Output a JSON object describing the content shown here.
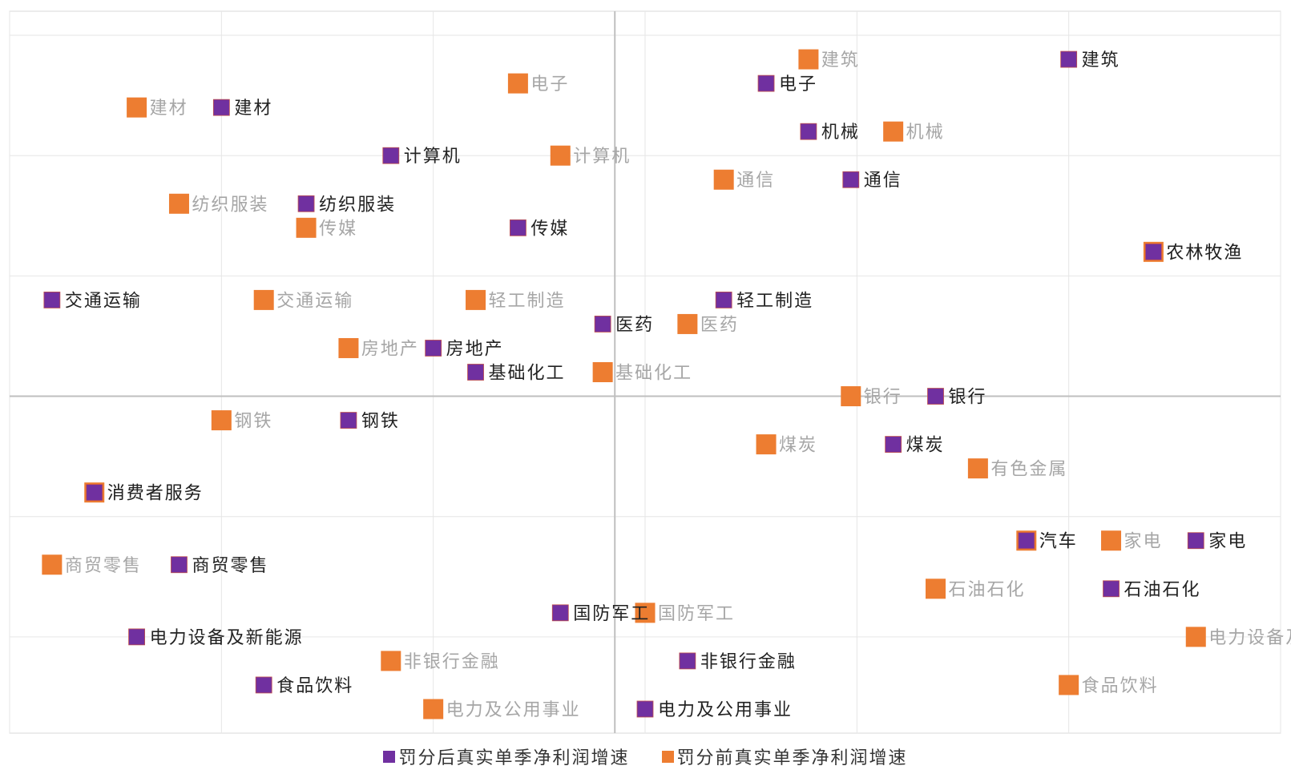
{
  "chart_data": {
    "type": "scatter",
    "title": "",
    "xlabel": "",
    "ylabel": "",
    "xlim": [
      0,
      10.5
    ],
    "ylim": [
      -14,
      16
    ],
    "grid": true,
    "legend_placement": "bottom",
    "series": [
      {
        "name": "罚分后真实单季净利润增速",
        "color": "#7030A0",
        "label_color": "#222222",
        "points": [
          {
            "label": "建筑",
            "x": 8.75,
            "y": 14
          },
          {
            "label": "电子",
            "x": 6.25,
            "y": 13
          },
          {
            "label": "建材",
            "x": 1.75,
            "y": 12
          },
          {
            "label": "机械",
            "x": 6.6,
            "y": 11
          },
          {
            "label": "计算机",
            "x": 3.15,
            "y": 10
          },
          {
            "label": "通信",
            "x": 6.95,
            "y": 9
          },
          {
            "label": "纺织服装",
            "x": 2.45,
            "y": 8
          },
          {
            "label": "传媒",
            "x": 4.2,
            "y": 7
          },
          {
            "label": "农林牧渔",
            "x": 9.45,
            "y": 6
          },
          {
            "label": "交通运输",
            "x": 0.35,
            "y": 4
          },
          {
            "label": "轻工制造",
            "x": 5.9,
            "y": 4
          },
          {
            "label": "医药",
            "x": 4.9,
            "y": 3
          },
          {
            "label": "房地产",
            "x": 3.5,
            "y": 2
          },
          {
            "label": "基础化工",
            "x": 3.85,
            "y": 1
          },
          {
            "label": "银行",
            "x": 7.65,
            "y": 0
          },
          {
            "label": "钢铁",
            "x": 2.8,
            "y": -1
          },
          {
            "label": "煤炭",
            "x": 7.3,
            "y": -2
          },
          {
            "label": "消费者服务",
            "x": 0.7,
            "y": -4
          },
          {
            "label": "汽车",
            "x": 8.4,
            "y": -6
          },
          {
            "label": "家电",
            "x": 9.8,
            "y": -6
          },
          {
            "label": "商贸零售",
            "x": 1.4,
            "y": -7
          },
          {
            "label": "石油石化",
            "x": 9.1,
            "y": -8
          },
          {
            "label": "国防军工",
            "x": 4.55,
            "y": -9
          },
          {
            "label": "电力设备及新能源",
            "x": 1.05,
            "y": -10
          },
          {
            "label": "非银行金融",
            "x": 5.6,
            "y": -11
          },
          {
            "label": "食品饮料",
            "x": 2.1,
            "y": -12
          },
          {
            "label": "电力及公用事业",
            "x": 5.25,
            "y": -13
          }
        ]
      },
      {
        "name": "罚分前真实单季净利润增速",
        "color": "#ED7D31",
        "label_color": "#A6A6A6",
        "points": [
          {
            "label": "建筑",
            "x": 6.6,
            "y": 14
          },
          {
            "label": "电子",
            "x": 4.2,
            "y": 13
          },
          {
            "label": "建材",
            "x": 1.05,
            "y": 12
          },
          {
            "label": "机械",
            "x": 7.3,
            "y": 11
          },
          {
            "label": "计算机",
            "x": 4.55,
            "y": 10
          },
          {
            "label": "通信",
            "x": 5.9,
            "y": 9
          },
          {
            "label": "纺织服装",
            "x": 1.4,
            "y": 8
          },
          {
            "label": "传媒",
            "x": 2.45,
            "y": 7
          },
          {
            "label": "农林牧渔",
            "x": 9.45,
            "y": 6
          },
          {
            "label": "交通运输",
            "x": 2.1,
            "y": 4
          },
          {
            "label": "轻工制造",
            "x": 3.85,
            "y": 4
          },
          {
            "label": "医药",
            "x": 5.6,
            "y": 3
          },
          {
            "label": "房地产",
            "x": 2.8,
            "y": 2
          },
          {
            "label": "基础化工",
            "x": 4.9,
            "y": 1
          },
          {
            "label": "银行",
            "x": 6.95,
            "y": 0
          },
          {
            "label": "钢铁",
            "x": 1.75,
            "y": -1
          },
          {
            "label": "煤炭",
            "x": 6.25,
            "y": -2
          },
          {
            "label": "有色金属",
            "x": 8.0,
            "y": -3
          },
          {
            "label": "消费者服务",
            "x": 0.7,
            "y": -4
          },
          {
            "label": "汽车",
            "x": 8.4,
            "y": -6
          },
          {
            "label": "家电",
            "x": 9.1,
            "y": -6
          },
          {
            "label": "商贸零售",
            "x": 0.35,
            "y": -7
          },
          {
            "label": "石油石化",
            "x": 7.65,
            "y": -8
          },
          {
            "label": "国防军工",
            "x": 5.25,
            "y": -9
          },
          {
            "label": "电力设备及新能源",
            "x": 9.8,
            "y": -10
          },
          {
            "label": "非银行金融",
            "x": 3.15,
            "y": -11
          },
          {
            "label": "食品饮料",
            "x": 8.75,
            "y": -12
          },
          {
            "label": "电力及公用事业",
            "x": 3.5,
            "y": -13
          }
        ]
      }
    ]
  }
}
